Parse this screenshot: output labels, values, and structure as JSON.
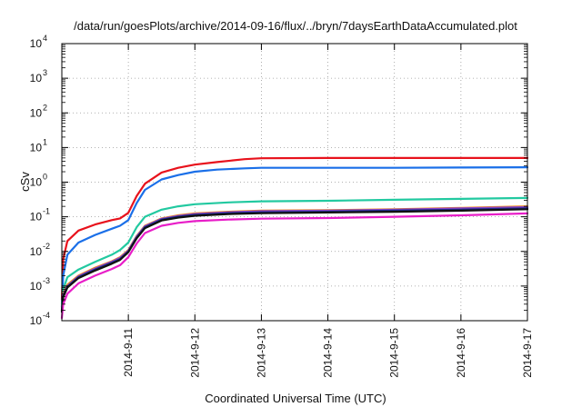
{
  "chart_data": {
    "type": "line",
    "title": "/data/run/goesPlots/archive/2014-09-16/flux/../bryn/7daysEarthDataAccumulated.plot",
    "xlabel": "Coordinated Universal Time (UTC)",
    "ylabel": "cSv",
    "xlim": [
      "2014-09-10",
      "2014-09-17"
    ],
    "x_ticks": [
      "2014-9-11",
      "2014-9-12",
      "2014-9-13",
      "2014-9-14",
      "2014-9-15",
      "2014-9-16",
      "2014-9-17"
    ],
    "yscale": "log",
    "ylim": [
      0.0001,
      10000
    ],
    "y_ticks": [
      {
        "base": "10",
        "exp": "-4",
        "value": 0.0001
      },
      {
        "base": "10",
        "exp": "-3",
        "value": 0.001
      },
      {
        "base": "10",
        "exp": "-2",
        "value": 0.01
      },
      {
        "base": "10",
        "exp": "-1",
        "value": 0.1
      },
      {
        "base": "10",
        "exp": "0",
        "value": 1
      },
      {
        "base": "10",
        "exp": "1",
        "value": 10
      },
      {
        "base": "10",
        "exp": "2",
        "value": 100
      },
      {
        "base": "10",
        "exp": "3",
        "value": 1000
      },
      {
        "base": "10",
        "exp": "4",
        "value": 10000
      }
    ],
    "grid": true,
    "series": [
      {
        "color": "#e8121c",
        "points": [
          [
            "2014-09-10T00:00",
            0.0004
          ],
          [
            "2014-09-10T00:30",
            0.006
          ],
          [
            "2014-09-10T02:00",
            0.02
          ],
          [
            "2014-09-10T06:00",
            0.04
          ],
          [
            "2014-09-10T12:00",
            0.06
          ],
          [
            "2014-09-10T18:00",
            0.08
          ],
          [
            "2014-09-10T21:00",
            0.09
          ],
          [
            "2014-09-11T00:00",
            0.13
          ],
          [
            "2014-09-11T03:00",
            0.4
          ],
          [
            "2014-09-11T06:00",
            0.9
          ],
          [
            "2014-09-11T12:00",
            1.9
          ],
          [
            "2014-09-11T18:00",
            2.6
          ],
          [
            "2014-09-12T00:00",
            3.2
          ],
          [
            "2014-09-12T08:00",
            3.8
          ],
          [
            "2014-09-12T18:00",
            4.6
          ],
          [
            "2014-09-13T00:00",
            4.9
          ],
          [
            "2014-09-14T00:00",
            5.0
          ],
          [
            "2014-09-15T00:00",
            5.0
          ],
          [
            "2014-09-16T00:00",
            5.0
          ],
          [
            "2014-09-17T00:00",
            5.0
          ]
        ]
      },
      {
        "color": "#1a6fe8",
        "points": [
          [
            "2014-09-10T00:00",
            0.00025
          ],
          [
            "2014-09-10T00:30",
            0.002
          ],
          [
            "2014-09-10T02:00",
            0.008
          ],
          [
            "2014-09-10T06:00",
            0.018
          ],
          [
            "2014-09-10T12:00",
            0.03
          ],
          [
            "2014-09-10T18:00",
            0.045
          ],
          [
            "2014-09-10T21:00",
            0.055
          ],
          [
            "2014-09-11T00:00",
            0.08
          ],
          [
            "2014-09-11T03:00",
            0.25
          ],
          [
            "2014-09-11T06:00",
            0.6
          ],
          [
            "2014-09-11T12:00",
            1.2
          ],
          [
            "2014-09-11T18:00",
            1.6
          ],
          [
            "2014-09-12T00:00",
            2.0
          ],
          [
            "2014-09-12T08:00",
            2.3
          ],
          [
            "2014-09-12T18:00",
            2.5
          ],
          [
            "2014-09-13T00:00",
            2.6
          ],
          [
            "2014-09-14T00:00",
            2.6
          ],
          [
            "2014-09-15T00:00",
            2.6
          ],
          [
            "2014-09-16T00:00",
            2.65
          ],
          [
            "2014-09-17T00:00",
            2.7
          ]
        ]
      },
      {
        "color": "#22c9a0",
        "points": [
          [
            "2014-09-10T00:00",
            0.0003
          ],
          [
            "2014-09-10T00:30",
            0.0008
          ],
          [
            "2014-09-10T02:00",
            0.0018
          ],
          [
            "2014-09-10T06:00",
            0.003
          ],
          [
            "2014-09-10T12:00",
            0.005
          ],
          [
            "2014-09-10T18:00",
            0.008
          ],
          [
            "2014-09-10T21:00",
            0.011
          ],
          [
            "2014-09-11T00:00",
            0.018
          ],
          [
            "2014-09-11T03:00",
            0.05
          ],
          [
            "2014-09-11T06:00",
            0.1
          ],
          [
            "2014-09-11T12:00",
            0.16
          ],
          [
            "2014-09-11T18:00",
            0.2
          ],
          [
            "2014-09-12T00:00",
            0.23
          ],
          [
            "2014-09-12T12:00",
            0.26
          ],
          [
            "2014-09-13T00:00",
            0.28
          ],
          [
            "2014-09-14T00:00",
            0.29
          ],
          [
            "2014-09-15T00:00",
            0.31
          ],
          [
            "2014-09-16T00:00",
            0.33
          ],
          [
            "2014-09-17T00:00",
            0.35
          ]
        ]
      },
      {
        "color": "#ee8a18",
        "points": [
          [
            "2014-09-10T00:00",
            0.0002
          ],
          [
            "2014-09-10T00:30",
            0.0006
          ],
          [
            "2014-09-10T02:00",
            0.0011
          ],
          [
            "2014-09-10T06:00",
            0.002
          ],
          [
            "2014-09-10T12:00",
            0.0034
          ],
          [
            "2014-09-10T18:00",
            0.0052
          ],
          [
            "2014-09-10T21:00",
            0.0068
          ],
          [
            "2014-09-11T00:00",
            0.011
          ],
          [
            "2014-09-11T03:00",
            0.028
          ],
          [
            "2014-09-11T06:00",
            0.055
          ],
          [
            "2014-09-11T12:00",
            0.09
          ],
          [
            "2014-09-11T18:00",
            0.11
          ],
          [
            "2014-09-12T00:00",
            0.125
          ],
          [
            "2014-09-12T12:00",
            0.14
          ],
          [
            "2014-09-13T00:00",
            0.15
          ],
          [
            "2014-09-14T00:00",
            0.155
          ],
          [
            "2014-09-15T00:00",
            0.165
          ],
          [
            "2014-09-16T00:00",
            0.18
          ],
          [
            "2014-09-17T00:00",
            0.2
          ]
        ]
      },
      {
        "color": "#8a45c9",
        "points": [
          [
            "2014-09-10T00:00",
            0.0002
          ],
          [
            "2014-09-10T00:30",
            0.00055
          ],
          [
            "2014-09-10T02:00",
            0.001
          ],
          [
            "2014-09-10T06:00",
            0.0019
          ],
          [
            "2014-09-10T12:00",
            0.0032
          ],
          [
            "2014-09-10T18:00",
            0.005
          ],
          [
            "2014-09-10T21:00",
            0.0065
          ],
          [
            "2014-09-11T00:00",
            0.0105
          ],
          [
            "2014-09-11T03:00",
            0.027
          ],
          [
            "2014-09-11T06:00",
            0.053
          ],
          [
            "2014-09-11T12:00",
            0.087
          ],
          [
            "2014-09-11T18:00",
            0.106
          ],
          [
            "2014-09-12T00:00",
            0.12
          ],
          [
            "2014-09-12T12:00",
            0.135
          ],
          [
            "2014-09-13T00:00",
            0.145
          ],
          [
            "2014-09-14T00:00",
            0.15
          ],
          [
            "2014-09-15T00:00",
            0.16
          ],
          [
            "2014-09-16T00:00",
            0.175
          ],
          [
            "2014-09-17T00:00",
            0.19
          ]
        ]
      },
      {
        "color": "#1f2a8c",
        "points": [
          [
            "2014-09-10T00:00",
            0.00019
          ],
          [
            "2014-09-10T00:30",
            0.0005
          ],
          [
            "2014-09-10T02:00",
            0.00095
          ],
          [
            "2014-09-10T06:00",
            0.0018
          ],
          [
            "2014-09-10T12:00",
            0.003
          ],
          [
            "2014-09-10T18:00",
            0.0047
          ],
          [
            "2014-09-10T21:00",
            0.006
          ],
          [
            "2014-09-11T00:00",
            0.01
          ],
          [
            "2014-09-11T03:00",
            0.025
          ],
          [
            "2014-09-11T06:00",
            0.05
          ],
          [
            "2014-09-11T12:00",
            0.083
          ],
          [
            "2014-09-11T18:00",
            0.1
          ],
          [
            "2014-09-12T00:00",
            0.113
          ],
          [
            "2014-09-12T12:00",
            0.127
          ],
          [
            "2014-09-13T00:00",
            0.135
          ],
          [
            "2014-09-14T00:00",
            0.14
          ],
          [
            "2014-09-15T00:00",
            0.15
          ],
          [
            "2014-09-16T00:00",
            0.16
          ],
          [
            "2014-09-17T00:00",
            0.175
          ]
        ]
      },
      {
        "color": "#111111",
        "points": [
          [
            "2014-09-10T00:00",
            0.00018
          ],
          [
            "2014-09-10T00:30",
            0.00048
          ],
          [
            "2014-09-10T02:00",
            0.0009
          ],
          [
            "2014-09-10T06:00",
            0.0017
          ],
          [
            "2014-09-10T12:00",
            0.0028
          ],
          [
            "2014-09-10T18:00",
            0.0044
          ],
          [
            "2014-09-10T21:00",
            0.0057
          ],
          [
            "2014-09-11T00:00",
            0.0095
          ],
          [
            "2014-09-11T03:00",
            0.024
          ],
          [
            "2014-09-11T06:00",
            0.047
          ],
          [
            "2014-09-11T12:00",
            0.078
          ],
          [
            "2014-09-11T18:00",
            0.095
          ],
          [
            "2014-09-12T00:00",
            0.107
          ],
          [
            "2014-09-12T12:00",
            0.12
          ],
          [
            "2014-09-13T00:00",
            0.127
          ],
          [
            "2014-09-14T00:00",
            0.133
          ],
          [
            "2014-09-15T00:00",
            0.14
          ],
          [
            "2014-09-16T00:00",
            0.15
          ],
          [
            "2014-09-17T00:00",
            0.165
          ]
        ]
      },
      {
        "color": "#e81ec8",
        "points": [
          [
            "2014-09-10T00:00",
            0.00012
          ],
          [
            "2014-09-10T00:30",
            0.0003
          ],
          [
            "2014-09-10T02:00",
            0.0006
          ],
          [
            "2014-09-10T06:00",
            0.0012
          ],
          [
            "2014-09-10T12:00",
            0.002
          ],
          [
            "2014-09-10T18:00",
            0.0031
          ],
          [
            "2014-09-10T21:00",
            0.004
          ],
          [
            "2014-09-11T00:00",
            0.0068
          ],
          [
            "2014-09-11T03:00",
            0.017
          ],
          [
            "2014-09-11T06:00",
            0.034
          ],
          [
            "2014-09-11T12:00",
            0.055
          ],
          [
            "2014-09-11T18:00",
            0.067
          ],
          [
            "2014-09-12T00:00",
            0.075
          ],
          [
            "2014-09-12T12:00",
            0.083
          ],
          [
            "2014-09-13T00:00",
            0.088
          ],
          [
            "2014-09-14T00:00",
            0.092
          ],
          [
            "2014-09-15T00:00",
            0.1
          ],
          [
            "2014-09-16T00:00",
            0.11
          ],
          [
            "2014-09-17T00:00",
            0.125
          ]
        ]
      }
    ]
  }
}
